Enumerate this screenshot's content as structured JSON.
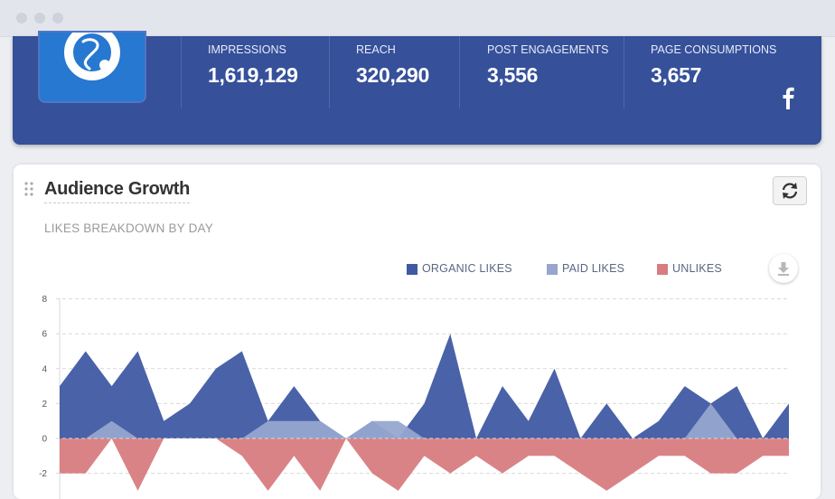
{
  "stats": [
    {
      "label": "IMPRESSIONS",
      "value": "1,619,129"
    },
    {
      "label": "REACH",
      "value": "320,290"
    },
    {
      "label": "POST ENGAGEMENTS",
      "value": "3,556"
    },
    {
      "label": "PAGE CONSUMPTIONS",
      "value": "3,657"
    }
  ],
  "panel": {
    "title": "Audience Growth",
    "subtitle": "LIKES BREAKDOWN BY DAY"
  },
  "legend": [
    {
      "label": "ORGANIC LIKES",
      "color": "#3f5aa3"
    },
    {
      "label": "PAID LIKES",
      "color": "#96a6cf"
    },
    {
      "label": "UNLIKES",
      "color": "#d87c80"
    }
  ],
  "chart_data": {
    "type": "area",
    "title": "LIKES BREAKDOWN BY DAY",
    "xlabel": "",
    "ylabel": "",
    "ylim": [
      -3,
      8
    ],
    "yticks": [
      "8",
      "6",
      "4",
      "2",
      "0",
      "-2"
    ],
    "grid": true,
    "legend_position": "top-right",
    "series": [
      {
        "name": "ORGANIC LIKES",
        "color": "#3f5aa3",
        "values": [
          3,
          5,
          3,
          5,
          1,
          2,
          4,
          5,
          1,
          3,
          1,
          0,
          1,
          0,
          2,
          6,
          0,
          3,
          1,
          4,
          0,
          2,
          0,
          1,
          3,
          2,
          3,
          0,
          2
        ]
      },
      {
        "name": "PAID LIKES",
        "color": "#96a6cf",
        "values": [
          0,
          0,
          1,
          0,
          0,
          0,
          0,
          0,
          1,
          1,
          1,
          0,
          1,
          1,
          0,
          0,
          0,
          0,
          0,
          0,
          0,
          0,
          0,
          0,
          0,
          2,
          0,
          0,
          0
        ]
      },
      {
        "name": "UNLIKES",
        "color": "#d87c80",
        "values": [
          -2,
          -2,
          0,
          -3,
          0,
          0,
          0,
          -1,
          -3,
          -1,
          -3,
          0,
          -2,
          -3,
          -1,
          -2,
          -1,
          -2,
          -1,
          -1,
          -2,
          -3,
          -2,
          -1,
          -1,
          -2,
          -2,
          -1,
          -1
        ]
      }
    ]
  }
}
